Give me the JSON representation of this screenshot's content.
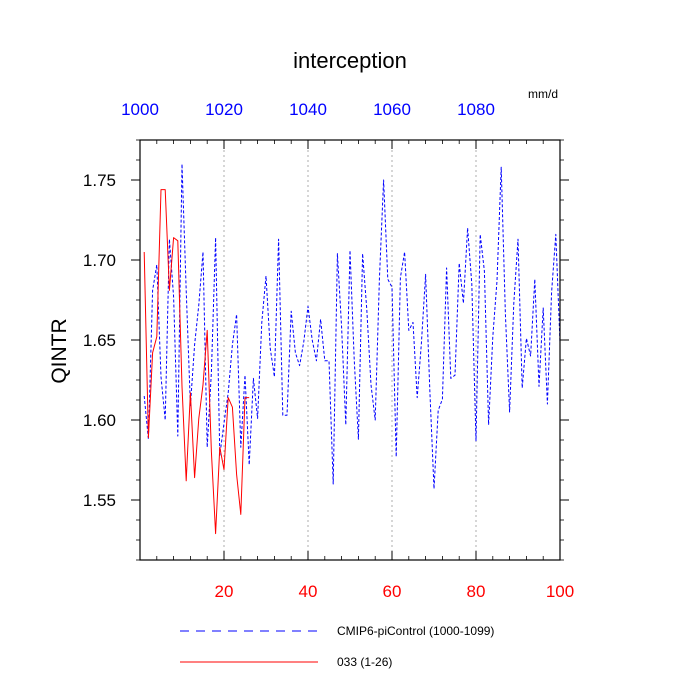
{
  "chart_data": {
    "type": "line",
    "title": "interception",
    "ylabel": "QINTR",
    "units": "mm/d",
    "xlim": [
      0,
      100
    ],
    "x_ticks": [
      20,
      40,
      60,
      80,
      100
    ],
    "x_tick_color": "#ff0000",
    "x2lim": [
      1000,
      1100
    ],
    "x2_ticks": [
      1000,
      1020,
      1040,
      1060,
      1080
    ],
    "x2_tick_color": "#0000ff",
    "ylim": [
      1.5125,
      1.775
    ],
    "y_ticks": [
      1.55,
      1.6,
      1.65,
      1.7,
      1.75
    ],
    "y_tick_labels": [
      "1.55",
      "1.60",
      "1.65",
      "1.70",
      "1.75"
    ],
    "y_minor_step": 0.0125,
    "x_gridlines": [
      20,
      40,
      60,
      80
    ],
    "legend_position": "bottom",
    "series": [
      {
        "name": "CMIP6-piControl (1000-1099)",
        "color": "#0000ff",
        "style": "dashed",
        "x_start": 1,
        "values": [
          1.615,
          1.588,
          1.681,
          1.697,
          1.627,
          1.6,
          1.713,
          1.677,
          1.59,
          1.76,
          1.681,
          1.609,
          1.647,
          1.672,
          1.705,
          1.583,
          1.63,
          1.714,
          1.578,
          1.598,
          1.617,
          1.647,
          1.666,
          1.583,
          1.628,
          1.572,
          1.626,
          1.601,
          1.661,
          1.69,
          1.645,
          1.627,
          1.713,
          1.603,
          1.603,
          1.668,
          1.642,
          1.634,
          1.649,
          1.671,
          1.65,
          1.637,
          1.663,
          1.637,
          1.637,
          1.56,
          1.704,
          1.658,
          1.597,
          1.706,
          1.638,
          1.588,
          1.704,
          1.669,
          1.622,
          1.6,
          1.688,
          1.75,
          1.688,
          1.683,
          1.577,
          1.689,
          1.705,
          1.656,
          1.661,
          1.614,
          1.648,
          1.691,
          1.619,
          1.557,
          1.606,
          1.613,
          1.695,
          1.626,
          1.628,
          1.698,
          1.673,
          1.72,
          1.685,
          1.587,
          1.716,
          1.693,
          1.597,
          1.652,
          1.687,
          1.758,
          1.666,
          1.605,
          1.673,
          1.713,
          1.62,
          1.651,
          1.64,
          1.688,
          1.621,
          1.67,
          1.61,
          1.68,
          1.716,
          1.648
        ]
      },
      {
        "name": "033 (1-26)",
        "color": "#ff0000",
        "style": "solid",
        "x_start": 1,
        "values": [
          1.705,
          1.589,
          1.642,
          1.652,
          1.744,
          1.744,
          1.681,
          1.714,
          1.712,
          1.621,
          1.562,
          1.617,
          1.564,
          1.601,
          1.622,
          1.656,
          1.58,
          1.529,
          1.583,
          1.569,
          1.614,
          1.608,
          1.566,
          1.541,
          1.614,
          1.614
        ]
      }
    ]
  }
}
